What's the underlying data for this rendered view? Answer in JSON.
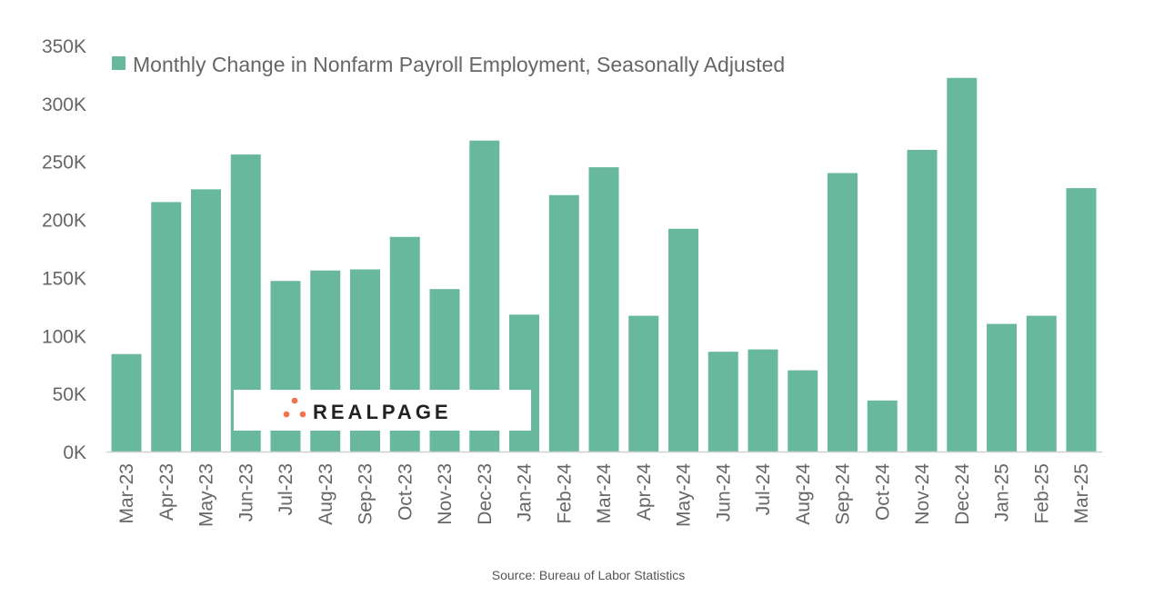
{
  "chart_data": {
    "type": "bar",
    "title": "",
    "legend": [
      "Monthly Change in Nonfarm Payroll Employment, Seasonally Adjusted"
    ],
    "legend_position": "top",
    "xlabel": "",
    "ylabel": "",
    "ylim": [
      0,
      350000
    ],
    "yticks": [
      0,
      50000,
      100000,
      150000,
      200000,
      250000,
      300000,
      350000
    ],
    "ytick_labels": [
      "0K",
      "50K",
      "100K",
      "150K",
      "200K",
      "250K",
      "300K",
      "350K"
    ],
    "categories": [
      "Mar-23",
      "Apr-23",
      "May-23",
      "Jun-23",
      "Jul-23",
      "Aug-23",
      "Sep-23",
      "Oct-23",
      "Nov-23",
      "Dec-23",
      "Jan-24",
      "Feb-24",
      "Mar-24",
      "Apr-24",
      "May-24",
      "Jun-24",
      "Jul-24",
      "Aug-24",
      "Sep-24",
      "Oct-24",
      "Nov-24",
      "Dec-24",
      "Jan-25",
      "Feb-25",
      "Mar-25"
    ],
    "series": [
      {
        "name": "Monthly Change in Nonfarm Payroll Employment, Seasonally Adjusted",
        "color": "#68b89d",
        "values": [
          84000,
          215000,
          226000,
          256000,
          147000,
          156000,
          157000,
          185000,
          140000,
          268000,
          118000,
          221000,
          245000,
          117000,
          192000,
          86000,
          88000,
          70000,
          240000,
          44000,
          260000,
          322000,
          110000,
          117000,
          227000
        ]
      }
    ],
    "grid": false,
    "source": "Source: Bureau of Labor Statistics",
    "watermark": "REALPAGE"
  },
  "colors": {
    "bar": "#68b89d",
    "logo_dots": "#f0734a"
  }
}
